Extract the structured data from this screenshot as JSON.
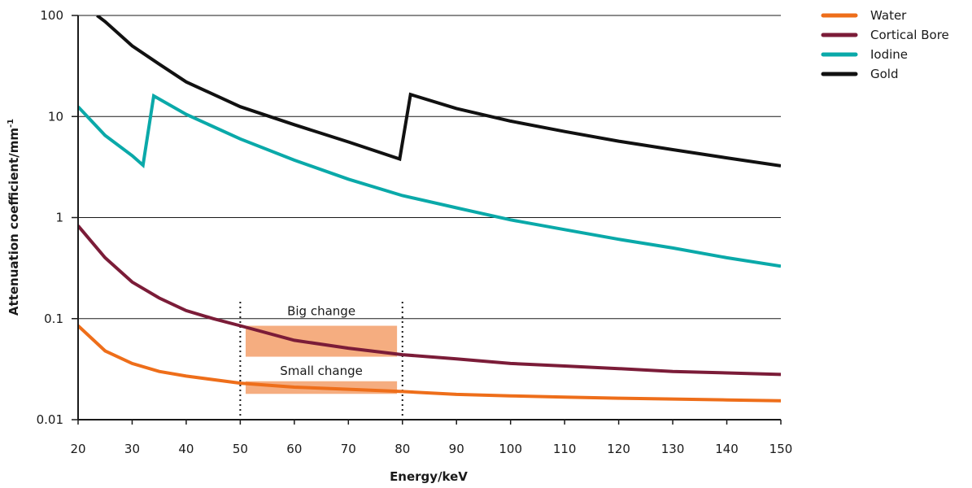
{
  "chart_data": {
    "type": "line",
    "xlabel": "Energy/keV",
    "ylabel": "Attenuation coefficient/mm",
    "ylabel_sup": "-1",
    "xlim": [
      20,
      150
    ],
    "ylim": [
      0.01,
      100
    ],
    "yscale": "log",
    "x_ticks": [
      20,
      30,
      40,
      50,
      60,
      70,
      80,
      90,
      100,
      110,
      120,
      130,
      140,
      150
    ],
    "x_tick_labels": [
      "20",
      "30",
      "40",
      "50",
      "60",
      "70",
      "80",
      "90",
      "100",
      "110",
      "120",
      "130",
      "140",
      "150"
    ],
    "y_ticks": [
      0.01,
      0.1,
      1,
      10,
      100
    ],
    "y_tick_labels": [
      "0.01",
      "0.1",
      "1",
      "10",
      "100"
    ],
    "grid": "horizontal",
    "legend_position": "top-right",
    "series": [
      {
        "name": "Water",
        "color": "#ee6e1a",
        "points": [
          [
            20,
            0.085
          ],
          [
            25,
            0.048
          ],
          [
            30,
            0.036
          ],
          [
            35,
            0.03
          ],
          [
            40,
            0.027
          ],
          [
            50,
            0.023
          ],
          [
            60,
            0.021
          ],
          [
            70,
            0.02
          ],
          [
            80,
            0.019
          ],
          [
            90,
            0.0178
          ],
          [
            100,
            0.0172
          ],
          [
            110,
            0.0167
          ],
          [
            120,
            0.0163
          ],
          [
            130,
            0.016
          ],
          [
            140,
            0.0157
          ],
          [
            150,
            0.0154
          ]
        ]
      },
      {
        "name": "Cortical Bore",
        "color": "#7b1c38",
        "points": [
          [
            20,
            0.83
          ],
          [
            25,
            0.4
          ],
          [
            30,
            0.23
          ],
          [
            35,
            0.16
          ],
          [
            40,
            0.12
          ],
          [
            45,
            0.1
          ],
          [
            50,
            0.085
          ],
          [
            60,
            0.061
          ],
          [
            70,
            0.051
          ],
          [
            80,
            0.044
          ],
          [
            90,
            0.04
          ],
          [
            100,
            0.036
          ],
          [
            110,
            0.034
          ],
          [
            120,
            0.032
          ],
          [
            130,
            0.03
          ],
          [
            140,
            0.029
          ],
          [
            150,
            0.028
          ]
        ]
      },
      {
        "name": "Iodine",
        "color": "#0aa9a9",
        "points": [
          [
            20,
            12.5
          ],
          [
            25,
            6.5
          ],
          [
            30,
            4.1
          ],
          [
            32,
            3.3
          ],
          [
            34,
            16.0
          ],
          [
            40,
            10.5
          ],
          [
            50,
            6.0
          ],
          [
            60,
            3.7
          ],
          [
            70,
            2.4
          ],
          [
            80,
            1.65
          ],
          [
            90,
            1.25
          ],
          [
            100,
            0.95
          ],
          [
            110,
            0.76
          ],
          [
            120,
            0.61
          ],
          [
            130,
            0.5
          ],
          [
            140,
            0.4
          ],
          [
            150,
            0.33
          ]
        ]
      },
      {
        "name": "Gold",
        "color": "#111111",
        "points": [
          [
            23.5,
            100
          ],
          [
            25,
            87
          ],
          [
            30,
            50
          ],
          [
            35,
            33
          ],
          [
            40,
            22
          ],
          [
            50,
            12.5
          ],
          [
            60,
            8.3
          ],
          [
            70,
            5.6
          ],
          [
            79.5,
            3.8
          ],
          [
            81.5,
            16.5
          ],
          [
            90,
            12.0
          ],
          [
            100,
            9.0
          ],
          [
            110,
            7.1
          ],
          [
            120,
            5.7
          ],
          [
            130,
            4.7
          ],
          [
            140,
            3.9
          ],
          [
            150,
            3.25
          ]
        ]
      }
    ],
    "annotations": {
      "big_change": "Big change",
      "small_change": "Small change",
      "range_x": [
        50,
        80
      ],
      "highlight_color": "#f5ad80",
      "big_change_band": {
        "x": [
          51,
          79
        ],
        "y": [
          0.042,
          0.085
        ]
      },
      "small_change_band": {
        "x": [
          51,
          79
        ],
        "y": [
          0.018,
          0.024
        ]
      }
    }
  }
}
